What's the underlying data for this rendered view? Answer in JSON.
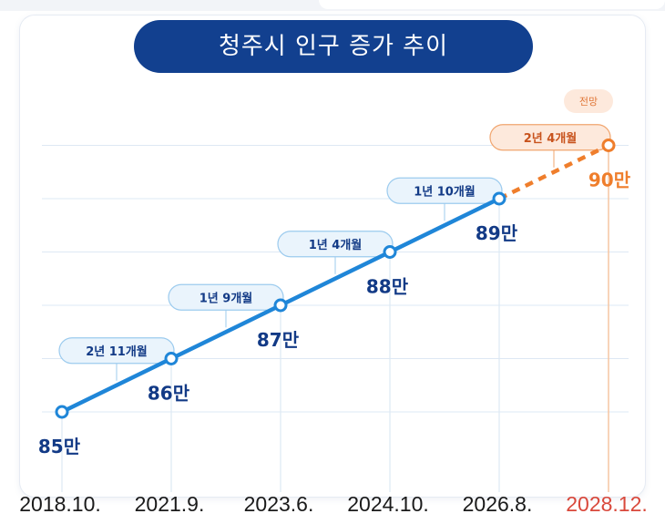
{
  "title": "청주시 인구 증가 추이",
  "forecast_badge": "전망",
  "colors": {
    "title_bg": "#12408f",
    "actual_line": "#1f86d8",
    "forecast_line": "#ef7e2c",
    "value_label": "#123a86",
    "forecast_value": "#ef7e2c",
    "forecast_date": "#d9483b",
    "grid": "#dde8f4"
  },
  "chart_data": {
    "type": "line",
    "title": "청주시 인구 증가 추이",
    "unit": "만",
    "categories": [
      "2018.10.",
      "2021.9.",
      "2023.6.",
      "2024.10.",
      "2026.8.",
      "2028.12."
    ],
    "values": [
      85,
      86,
      87,
      88,
      89,
      90
    ],
    "value_labels": [
      "85만",
      "86만",
      "87만",
      "88만",
      "89만",
      "90만"
    ],
    "forecast_from_index": 4,
    "forecast_index": 5,
    "intervals": [
      "2년 11개월",
      "1년 9개월",
      "1년 4개월",
      "1년 10개월",
      "2년 4개월"
    ],
    "ylim": [
      85,
      90
    ],
    "grid": true
  }
}
